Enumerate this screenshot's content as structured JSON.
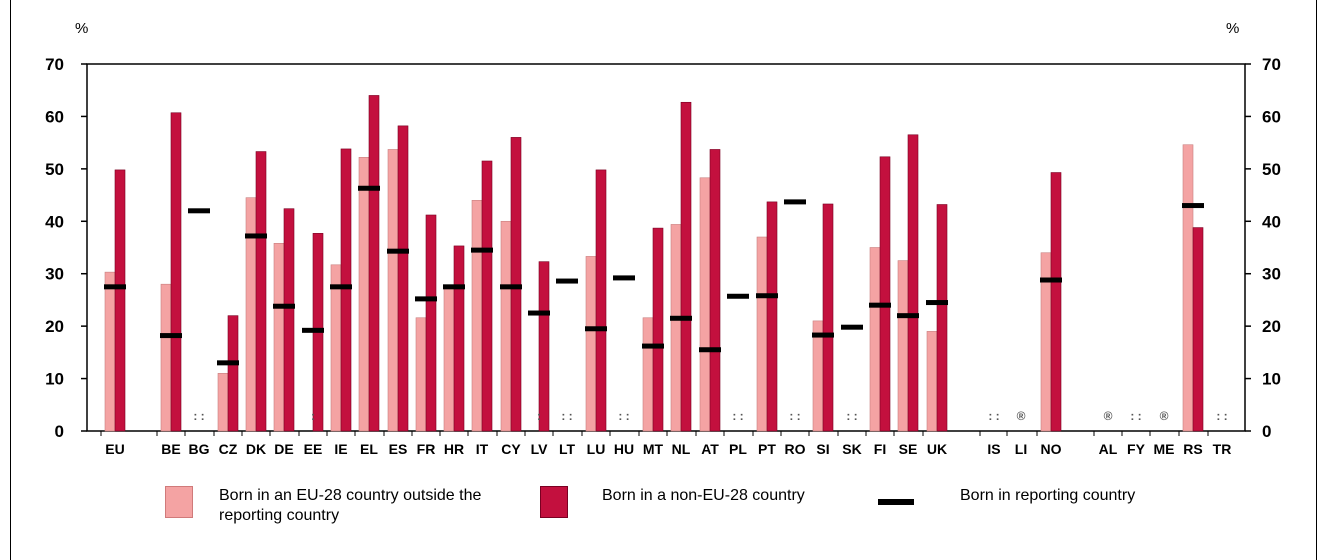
{
  "unit_left": "%",
  "unit_right": "%",
  "colors": {
    "eu28": "#F4A3A3",
    "noneu": "#C3103E",
    "reporting": "#000000"
  },
  "legend": {
    "eu28": "Born in an EU-28 country outside the reporting country",
    "noneu": "Born in a non-EU-28 country",
    "reporting": "Born in reporting country"
  },
  "chart_data": {
    "type": "bar",
    "ylim": [
      0,
      70
    ],
    "yticks": [
      0,
      10,
      20,
      30,
      40,
      50,
      60,
      70
    ],
    "grid": false,
    "legend_position": "bottom",
    "categories": [
      "EU",
      "BE",
      "BG",
      "CZ",
      "DK",
      "DE",
      "EE",
      "IE",
      "EL",
      "ES",
      "FR",
      "HR",
      "IT",
      "CY",
      "LV",
      "LT",
      "LU",
      "HU",
      "MT",
      "NL",
      "AT",
      "PL",
      "PT",
      "RO",
      "SI",
      "SK",
      "FI",
      "SE",
      "UK",
      "IS",
      "LI",
      "NO",
      "AL",
      "FY",
      "ME",
      "RS",
      "TR"
    ],
    "series": [
      {
        "name": "Born in an EU-28 country outside the reporting country",
        "values": [
          30.3,
          28,
          null,
          11,
          44.5,
          35.8,
          null,
          31.7,
          52.2,
          53.7,
          21.6,
          27.5,
          44,
          40,
          null,
          null,
          33.3,
          null,
          21.6,
          39.4,
          48.3,
          null,
          37,
          null,
          21,
          null,
          35,
          32.5,
          19,
          null,
          null,
          34,
          null,
          null,
          null,
          54.6,
          null
        ]
      },
      {
        "name": "Born in a non-EU-28 country",
        "values": [
          49.8,
          60.7,
          null,
          22,
          53.3,
          42.4,
          37.7,
          53.8,
          64,
          58.2,
          41.2,
          35.3,
          51.5,
          56,
          32.3,
          null,
          49.8,
          null,
          38.7,
          62.7,
          53.7,
          null,
          43.7,
          null,
          43.3,
          null,
          52.3,
          56.5,
          43.2,
          null,
          null,
          49.3,
          null,
          null,
          null,
          38.8,
          null
        ]
      },
      {
        "name": "Born in reporting country",
        "values": [
          27.5,
          18.2,
          42,
          13,
          37.2,
          23.8,
          19.2,
          27.5,
          46.3,
          34.3,
          25.2,
          27.5,
          34.5,
          27.5,
          22.5,
          28.6,
          19.5,
          29.2,
          16.2,
          21.5,
          15.5,
          25.7,
          25.8,
          43.7,
          18.3,
          19.8,
          24,
          22,
          24.5,
          null,
          null,
          28.8,
          null,
          null,
          null,
          43,
          null
        ]
      }
    ],
    "flags": [
      "",
      "",
      "::",
      "",
      "",
      "",
      "::",
      "",
      "",
      "",
      "",
      "",
      "",
      "",
      "::",
      "::",
      "",
      "::",
      "",
      "",
      "",
      "::",
      "",
      "::",
      "",
      "::",
      "",
      "",
      "",
      "::",
      "(u)",
      "",
      "(u)",
      "::",
      "(u)",
      "",
      ":"
    ],
    "flags_display": [
      "",
      "",
      ": :",
      "",
      "",
      "",
      ":",
      "",
      "",
      "",
      "",
      "",
      "",
      "",
      ":",
      ": :",
      "",
      ": :",
      "",
      "",
      "",
      ": :",
      "",
      ": :",
      "",
      ": :",
      "",
      "",
      "",
      ": :",
      "®",
      "",
      "®",
      ": :",
      "®",
      "",
      ": :"
    ]
  }
}
